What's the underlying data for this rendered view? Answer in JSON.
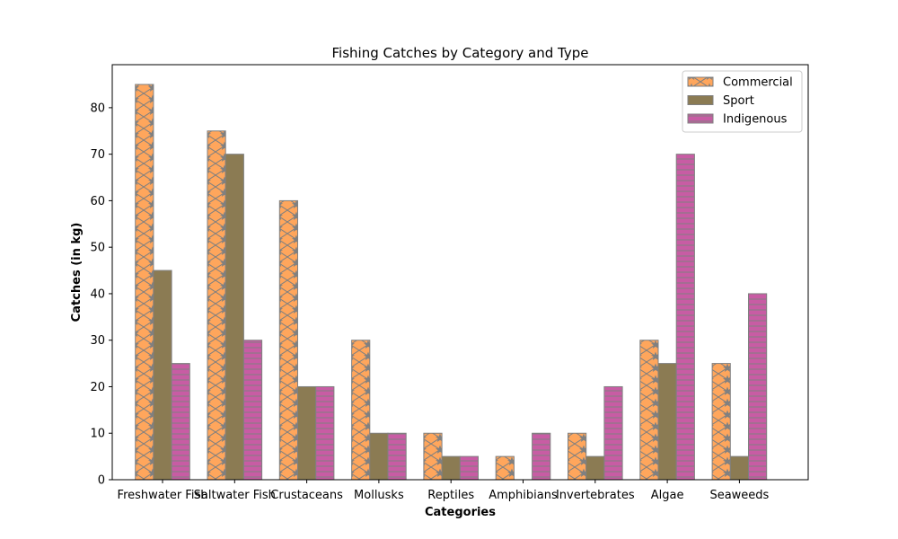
{
  "chart_data": {
    "type": "bar",
    "title": "Fishing Catches by Category and Type",
    "xlabel": "Categories",
    "ylabel": "Catches (in kg)",
    "categories": [
      "Freshwater Fish",
      "Saltwater Fish",
      "Crustaceans",
      "Mollusks",
      "Reptiles",
      "Amphibians",
      "Invertebrates",
      "Algae",
      "Seaweeds"
    ],
    "series": [
      {
        "name": "Commercial",
        "values": [
          85,
          75,
          60,
          30,
          10,
          5,
          10,
          30,
          25
        ],
        "color": "#ffa65c",
        "pattern": "star-hatch"
      },
      {
        "name": "Sport",
        "values": [
          45,
          70,
          20,
          10,
          5,
          0,
          5,
          25,
          5
        ],
        "color": "#8b7b53",
        "pattern": "solid"
      },
      {
        "name": "Indigenous",
        "values": [
          25,
          30,
          20,
          10,
          5,
          10,
          20,
          70,
          40
        ],
        "color": "#c85ca4",
        "pattern": "horizontal-lines"
      }
    ],
    "ylim": [
      0,
      89.25
    ],
    "yticks": [
      0,
      10,
      20,
      30,
      40,
      50,
      60,
      70,
      80
    ],
    "grid": false,
    "legend_position": "top-right",
    "edge_color": "#808080"
  }
}
